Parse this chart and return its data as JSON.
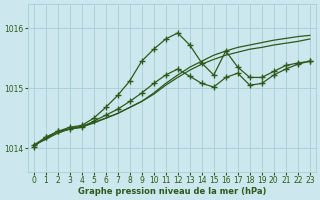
{
  "xlabel": "Graphe pression niveau de la mer (hPa)",
  "background_color": "#cce8ee",
  "grid_color": "#aacdd6",
  "line_color": "#2d5a1b",
  "xlim": [
    -0.5,
    23.5
  ],
  "ylim": [
    1013.6,
    1016.4
  ],
  "yticks": [
    1014,
    1015,
    1016
  ],
  "xticks": [
    0,
    1,
    2,
    3,
    4,
    5,
    6,
    7,
    8,
    9,
    10,
    11,
    12,
    13,
    14,
    15,
    16,
    17,
    18,
    19,
    20,
    21,
    22,
    23
  ],
  "series": [
    {
      "y": [
        1014.05,
        1014.15,
        1014.28,
        1014.32,
        1014.35,
        1014.42,
        1014.5,
        1014.58,
        1014.68,
        1014.78,
        1014.92,
        1015.08,
        1015.22,
        1015.35,
        1015.45,
        1015.55,
        1015.62,
        1015.68,
        1015.72,
        1015.76,
        1015.8,
        1015.83,
        1015.86,
        1015.88
      ],
      "marker": false
    },
    {
      "y": [
        1014.05,
        1014.15,
        1014.25,
        1014.32,
        1014.37,
        1014.43,
        1014.5,
        1014.58,
        1014.68,
        1014.78,
        1014.9,
        1015.05,
        1015.18,
        1015.3,
        1015.4,
        1015.48,
        1015.55,
        1015.6,
        1015.65,
        1015.68,
        1015.72,
        1015.75,
        1015.78,
        1015.82
      ],
      "marker": false
    },
    {
      "y": [
        1014.05,
        1014.18,
        1014.28,
        1014.32,
        1014.35,
        1014.45,
        1014.55,
        1014.65,
        1014.78,
        1014.92,
        1015.08,
        1015.22,
        1015.32,
        1015.2,
        1015.08,
        1015.02,
        1015.18,
        1015.25,
        1015.05,
        1015.08,
        1015.22,
        1015.32,
        1015.4,
        1015.45
      ],
      "marker": true
    },
    {
      "y": [
        1014.02,
        1014.18,
        1014.28,
        1014.35,
        1014.38,
        1014.5,
        1014.68,
        1014.88,
        1015.12,
        1015.45,
        1015.65,
        1015.82,
        1015.92,
        1015.72,
        1015.42,
        1015.22,
        1015.62,
        1015.35,
        1015.18,
        1015.18,
        1015.28,
        1015.38,
        1015.42,
        1015.45
      ],
      "marker": true
    }
  ],
  "marker_symbol": "+",
  "marker_size": 4,
  "linewidth": 0.9
}
